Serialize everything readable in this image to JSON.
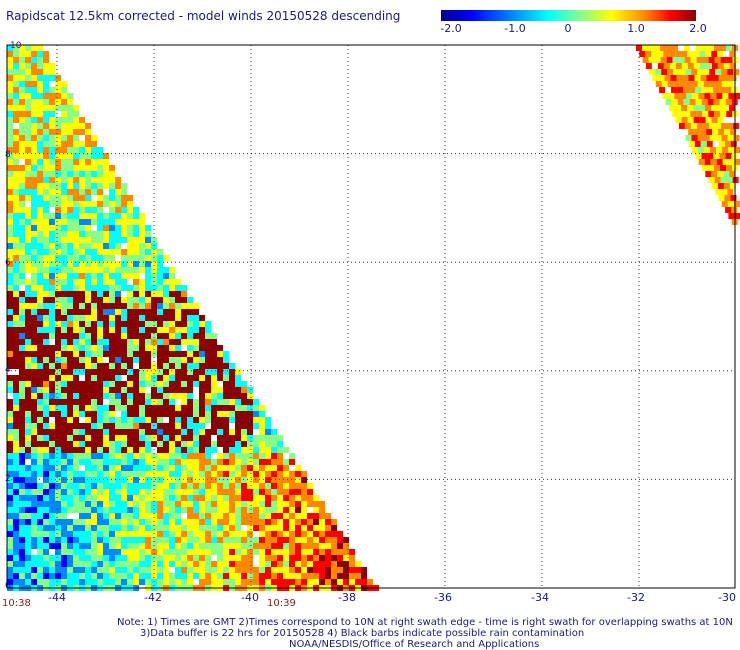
{
  "title": "Rapidscat 12.5km corrected - model winds 20150528 descending",
  "colorbar": {
    "labels": [
      "-2.0",
      "-1.0",
      "0",
      "1.0",
      "2.0"
    ],
    "colors": [
      "#00008c",
      "#0000ff",
      "#0088ff",
      "#00ffff",
      "#88ff88",
      "#ffff00",
      "#ff8800",
      "#ff0000",
      "#8b0000"
    ]
  },
  "axes": {
    "x_ticks": [
      "-44",
      "-42",
      "-40",
      "-38",
      "-36",
      "-34",
      "-32",
      "-30"
    ],
    "y_ticks": [
      "0",
      "2",
      "4",
      "6",
      "8",
      "10"
    ]
  },
  "time_labels": {
    "left": "10:38",
    "mid": "10:39"
  },
  "notes": {
    "line1": "Note: 1) Times are GMT 2)Times correspond to 10N at right swath edge - time is right swath for overlapping swaths at 10N",
    "line2": "3)Data buffer is 22 hrs for 20150528 4) Black barbs indicate possible rain contamination",
    "line3": "NOAA/NESDIS/Office of Research and Applications"
  }
}
